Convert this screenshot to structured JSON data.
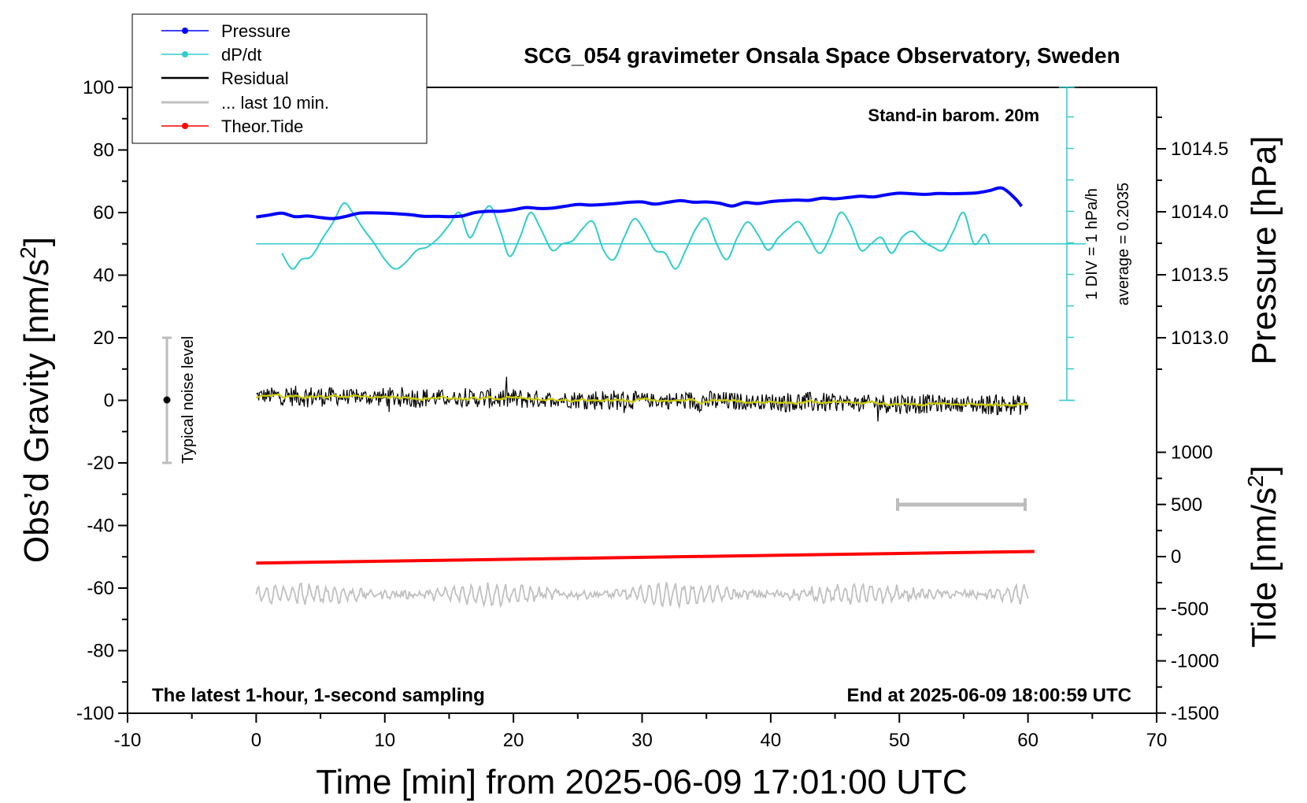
{
  "chart_data": {
    "type": "line",
    "title": "SCG_054 gravimeter Onsala Space Observatory, Sweden",
    "xlabel": "Time [min] from 2025-06-09 17:01:00 UTC",
    "ylabel": "Obs’d Gravity [nm/s",
    "ylabel_sup": "2",
    "ylabel_end": "]",
    "y2label": "Pressure [hPa]",
    "y3label": "Tide [nm/s",
    "y3label_sup": "2",
    "y3label_end": "]",
    "xlim": [
      -10,
      70
    ],
    "ylim": [
      -100,
      100
    ],
    "pressure_axis_ticks": [
      "1014.5",
      "1014.0",
      "1013.5",
      "1013.0"
    ],
    "pressure_axis_values": [
      1014.5,
      1014.0,
      1013.5,
      1013.0
    ],
    "tide_axis_ticks": [
      "1000",
      "500",
      "0",
      "-500",
      "-1000",
      "-1500"
    ],
    "tide_axis_values": [
      1000,
      500,
      0,
      -500,
      -1000,
      -1500
    ],
    "x_ticks": [
      "-10",
      "0",
      "10",
      "20",
      "30",
      "40",
      "50",
      "60",
      "70"
    ],
    "y_ticks": [
      "100",
      "80",
      "60",
      "40",
      "20",
      "0",
      "-20",
      "-40",
      "-60",
      "-80",
      "-100"
    ],
    "legend": [
      "Pressure",
      "dP/dt",
      "Residual",
      "... last 10 min.",
      "Theor.Tide"
    ],
    "legend_position": "top-left",
    "annotations": {
      "barometer": "Stand-in barom. 20m",
      "div_note": "1 DIV = 1 hPa/h",
      "average_note": "average = 0.2035",
      "noise_label": "Typical noise level",
      "bottom_left": "The latest 1-hour, 1-second sampling",
      "bottom_right": "End at 2025-06-09 18:00:59 UTC"
    },
    "colors": {
      "pressure": "#0000ff",
      "dpdt": "#33cccc",
      "residual": "#000000",
      "residual_smooth": "#cccc00",
      "last10": "#c0c0c0",
      "tide": "#ff0000"
    },
    "series": [
      {
        "name": "Pressure",
        "x": [
          0,
          1,
          2,
          3,
          4,
          5,
          6,
          7,
          8,
          9,
          10,
          11,
          12,
          13,
          14,
          15,
          16,
          17,
          18,
          19,
          20,
          21,
          22,
          23,
          24,
          25,
          26,
          27,
          28,
          29,
          30,
          31,
          32,
          33,
          34,
          35,
          36,
          37,
          38,
          39,
          40,
          41,
          42,
          43,
          44,
          45,
          46,
          47,
          48,
          49,
          50,
          51,
          52,
          53,
          54,
          55,
          56,
          57,
          58,
          59,
          59.5
        ],
        "y": [
          58.6,
          59.2,
          59.8,
          58.7,
          58.9,
          58.4,
          58.1,
          58.8,
          59.8,
          59.9,
          59.8,
          59.6,
          59.3,
          58.8,
          58.8,
          58.7,
          58.9,
          60.0,
          60.4,
          60.4,
          60.9,
          61.6,
          61.3,
          61.4,
          62.0,
          62.6,
          62.4,
          62.6,
          62.9,
          63.3,
          63.4,
          62.7,
          63.3,
          63.8,
          63.3,
          63.4,
          63.0,
          62.1,
          63.2,
          62.9,
          63.5,
          63.8,
          64.0,
          63.9,
          64.6,
          64.4,
          64.8,
          65.2,
          65.0,
          65.7,
          66.2,
          66.0,
          65.8,
          66.1,
          66.0,
          66.1,
          66.3,
          67.0,
          67.8,
          64.5,
          62.0
        ]
      },
      {
        "name": "dP/dt",
        "x": [
          2,
          2.8,
          3.5,
          4.3,
          5.2,
          6.0,
          6.8,
          7.5,
          8.3,
          9.2,
          10.0,
          10.8,
          11.6,
          12.5,
          13.3,
          14.2,
          15.0,
          15.8,
          16.6,
          17.4,
          18.2,
          19.0,
          19.7,
          20.5,
          21.3,
          22.1,
          23.0,
          23.8,
          24.6,
          25.4,
          26.2,
          27.0,
          27.8,
          28.6,
          29.4,
          30.2,
          31.0,
          31.8,
          32.6,
          33.4,
          34.2,
          35.0,
          35.8,
          36.6,
          37.4,
          38.2,
          39.0,
          39.8,
          40.6,
          41.4,
          42.2,
          43.0,
          43.8,
          44.6,
          45.4,
          46.2,
          47.0,
          47.8,
          48.6,
          49.4,
          50.2,
          51.0,
          51.8,
          52.6,
          53.4,
          54.2,
          55.0,
          55.8,
          56.6,
          57.0
        ],
        "y": [
          47,
          42,
          45,
          46,
          52,
          57,
          63,
          60,
          55,
          50,
          45,
          42,
          44,
          48,
          49,
          52,
          56,
          60,
          52,
          58,
          62,
          54,
          46,
          52,
          60,
          55,
          48,
          50,
          51,
          55,
          57,
          48,
          45,
          52,
          58,
          54,
          48,
          47,
          42,
          48,
          55,
          58,
          50,
          45,
          52,
          57,
          53,
          48,
          52,
          55,
          57,
          52,
          47,
          52,
          60,
          56,
          48,
          50,
          52,
          47,
          52,
          54,
          51,
          49,
          48,
          54,
          60,
          50,
          53,
          50
        ]
      },
      {
        "name": "Residual",
        "x": [
          0,
          60
        ],
        "y": [
          1.5,
          -1.5
        ]
      },
      {
        "name": "Theor.Tide",
        "x": [
          0,
          60.5
        ],
        "y": [
          -52,
          -48.3
        ]
      }
    ]
  }
}
